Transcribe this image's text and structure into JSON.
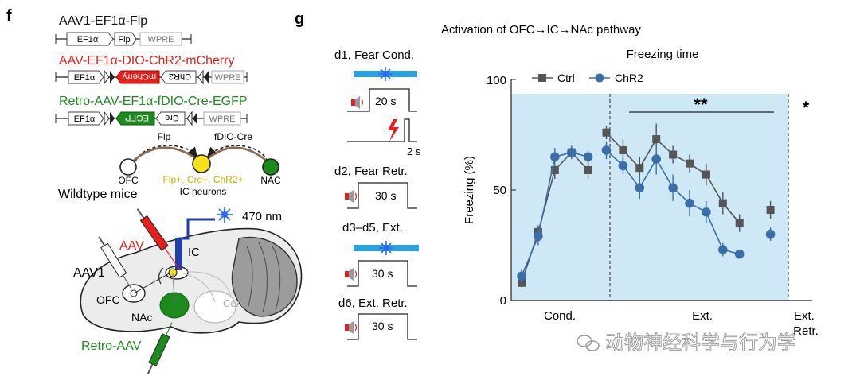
{
  "panel_f": {
    "label": "f",
    "constructs": [
      {
        "title": "AAV1-EF1α-Flp",
        "color": "#111111",
        "boxes": [
          "EF1α",
          "Flp",
          "WPRE"
        ]
      },
      {
        "title": "AAV-EF1α-DIO-ChR2-mCherry",
        "color": "#e3211c",
        "boxes": [
          "EF1α",
          "mCherry",
          "ChR2",
          "WPRE"
        ]
      },
      {
        "title": "Retro-AAV-EF1α-fDIO-Cre-EGFP",
        "color": "#1e8a1e",
        "boxes": [
          "EF1α",
          "EGFP",
          "Cre",
          "WPRE"
        ]
      }
    ],
    "circuit": {
      "flp": "Flp",
      "fdio_cre": "fDIO-Cre",
      "ofc": "OFC",
      "nac": "NAC",
      "ic_cells": "Flp+, Cre+, ChR2+",
      "ic_neurons": "IC neurons"
    },
    "brain": {
      "wildtype": "Wildtype mice",
      "wavelength": "470 nm",
      "aav": "AAV",
      "aav1": "AAV1",
      "ic": "IC",
      "ofc": "OFC",
      "nac": "NAc",
      "cea": "CeA",
      "retro": "Retro-AAV"
    }
  },
  "panel_g": {
    "label": "g",
    "title": "Activation of OFC→IC→NAc pathway",
    "protocol": {
      "d1": "d1, Fear Cond.",
      "d1_tone": "20 s",
      "d1_shock": "2 s",
      "d2": "d2, Fear Retr.",
      "d2_tone": "30 s",
      "d3": "d3–d5, Ext.",
      "d3_tone": "30 s",
      "d6": "d6, Ext. Retr.",
      "d6_tone": "30 s"
    }
  },
  "chart_data": {
    "type": "line",
    "title": "Freezing time",
    "ylabel": "Freezing (%)",
    "ylim": [
      0,
      100
    ],
    "yticks": [
      0,
      50,
      100
    ],
    "phases": [
      "Cond.",
      "Ext.",
      "Ext. Retr."
    ],
    "legend": [
      "Ctrl",
      "ChR2"
    ],
    "significance": [
      "**",
      "*"
    ],
    "series": [
      {
        "name": "Ctrl",
        "color": "#555555",
        "marker": "square",
        "segments": [
          [
            {
              "x": 1,
              "y": 8,
              "err": 2
            },
            {
              "x": 2,
              "y": 31,
              "err": 3
            },
            {
              "x": 3,
              "y": 59,
              "err": 4
            },
            {
              "x": 4,
              "y": 67,
              "err": 3
            },
            {
              "x": 5,
              "y": 59,
              "err": 4
            }
          ],
          [
            {
              "x": 6,
              "y": 76,
              "err": 3
            },
            {
              "x": 7,
              "y": 68,
              "err": 5
            },
            {
              "x": 8,
              "y": 60,
              "err": 5
            },
            {
              "x": 9,
              "y": 73,
              "err": 7
            },
            {
              "x": 10,
              "y": 66,
              "err": 4
            },
            {
              "x": 11,
              "y": 62,
              "err": 4
            },
            {
              "x": 12,
              "y": 57,
              "err": 5
            },
            {
              "x": 13,
              "y": 44,
              "err": 5
            },
            {
              "x": 14,
              "y": 35,
              "err": 4
            }
          ],
          [
            {
              "x": 15,
              "y": 41,
              "err": 4
            }
          ]
        ]
      },
      {
        "name": "ChR2",
        "color": "#3b6ea8",
        "marker": "circle",
        "segments": [
          [
            {
              "x": 1,
              "y": 11,
              "err": 3
            },
            {
              "x": 2,
              "y": 29,
              "err": 4
            },
            {
              "x": 3,
              "y": 65,
              "err": 4
            },
            {
              "x": 4,
              "y": 67,
              "err": 3
            },
            {
              "x": 5,
              "y": 65,
              "err": 3
            }
          ],
          [
            {
              "x": 6,
              "y": 68,
              "err": 4
            },
            {
              "x": 7,
              "y": 61,
              "err": 4
            },
            {
              "x": 8,
              "y": 51,
              "err": 5
            },
            {
              "x": 9,
              "y": 64,
              "err": 7
            },
            {
              "x": 10,
              "y": 51,
              "err": 6
            },
            {
              "x": 11,
              "y": 44,
              "err": 6
            },
            {
              "x": 12,
              "y": 40,
              "err": 5
            },
            {
              "x": 13,
              "y": 23,
              "err": 3
            },
            {
              "x": 14,
              "y": 21,
              "err": 2
            }
          ],
          [
            {
              "x": 15,
              "y": 30,
              "err": 3
            }
          ]
        ]
      }
    ]
  },
  "watermark": "动物神经科学与行为学"
}
